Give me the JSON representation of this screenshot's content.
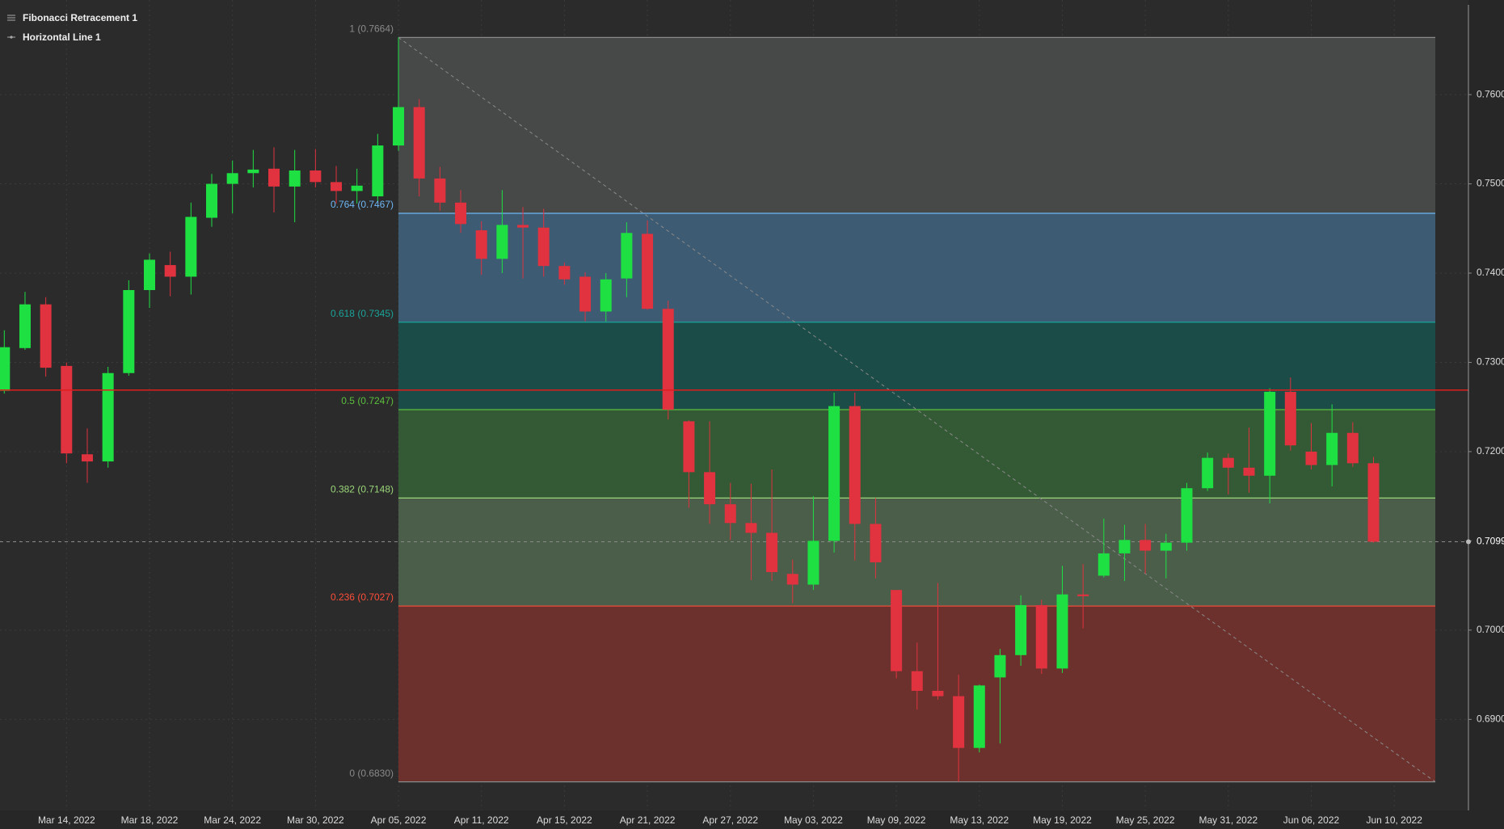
{
  "chart_data": {
    "type": "candlestick",
    "categories": [
      null,
      null,
      null,
      "Mar 14, 2022",
      null,
      null,
      null,
      "Mar 18, 2022",
      null,
      null,
      null,
      "Mar 24, 2022",
      null,
      null,
      null,
      "Mar 30, 2022",
      null,
      null,
      null,
      "Apr 05, 2022",
      null,
      null,
      null,
      "Apr 11, 2022",
      null,
      null,
      null,
      "Apr 15, 2022",
      null,
      null,
      null,
      "Apr 21, 2022",
      null,
      null,
      null,
      "Apr 27, 2022",
      null,
      null,
      null,
      "May 03, 2022",
      null,
      null,
      null,
      "May 09, 2022",
      null,
      null,
      null,
      "May 13, 2022",
      null,
      null,
      null,
      "May 19, 2022",
      null,
      null,
      null,
      "May 25, 2022",
      null,
      null,
      null,
      "May 31, 2022",
      null,
      null,
      null,
      "Jun 06, 2022",
      null,
      null,
      null,
      "Jun 10, 2022"
    ],
    "open": [
      0.7268,
      0.7316,
      0.7365,
      0.7296,
      0.7197,
      0.7189,
      0.7288,
      0.7381,
      0.7409,
      0.7396,
      0.7462,
      0.75,
      0.7512,
      0.7517,
      0.7497,
      0.7515,
      0.7502,
      0.7492,
      0.7486,
      0.7543,
      0.7586,
      0.7506,
      0.7479,
      0.7448,
      0.7416,
      0.7454,
      0.7451,
      0.7408,
      0.7396,
      0.7357,
      0.7394,
      0.7444,
      0.736,
      0.7234,
      0.7177,
      0.7141,
      0.712,
      0.7109,
      0.7063,
      0.7051,
      0.71,
      0.7251,
      0.7119,
      0.7045,
      0.6954,
      0.6932,
      0.6926,
      0.6868,
      0.6947,
      0.6972,
      0.7028,
      0.6957,
      0.704,
      0.7061,
      0.7086,
      0.7101,
      0.7089,
      0.7098,
      0.7159,
      0.7193,
      0.7182,
      0.7173,
      0.7267,
      0.72,
      0.7185,
      0.7221,
      0.7187,
      null
    ],
    "high": [
      0.7336,
      0.7379,
      0.7373,
      0.73,
      0.7226,
      0.7295,
      0.7392,
      0.7422,
      0.7424,
      0.7479,
      0.7511,
      0.7526,
      0.7538,
      0.7541,
      0.7538,
      0.7539,
      0.752,
      0.7517,
      0.7556,
      0.7664,
      0.7595,
      0.7519,
      0.7493,
      0.7458,
      0.7493,
      0.7474,
      0.7472,
      0.7412,
      0.7401,
      0.74,
      0.7457,
      0.7459,
      0.7369,
      0.7235,
      0.7234,
      0.7165,
      0.7164,
      0.718,
      0.7079,
      0.715,
      0.7266,
      0.7266,
      0.7148,
      0.7045,
      0.6986,
      0.7053,
      0.695,
      0.6939,
      0.6979,
      0.7039,
      0.7034,
      0.7072,
      0.7074,
      0.7125,
      0.7118,
      0.7119,
      0.7108,
      0.7165,
      0.7199,
      0.7198,
      0.7227,
      0.7271,
      0.7283,
      0.7232,
      0.7253,
      0.7233,
      0.7194,
      null
    ],
    "low": [
      0.7265,
      0.7314,
      0.7284,
      0.7187,
      0.7165,
      0.7182,
      0.7285,
      0.7361,
      0.7374,
      0.7376,
      0.7452,
      0.7467,
      0.7496,
      0.7468,
      0.7457,
      0.7496,
      0.7478,
      0.7478,
      0.7481,
      0.7537,
      0.7486,
      0.747,
      0.7445,
      0.7398,
      0.74,
      0.7394,
      0.7396,
      0.7387,
      0.7346,
      0.7346,
      0.7373,
      0.7359,
      0.7236,
      0.7137,
      0.7119,
      0.7101,
      0.7056,
      0.7055,
      0.703,
      0.7045,
      0.7087,
      0.7078,
      0.7058,
      0.6946,
      0.6911,
      0.6922,
      0.683,
      0.6863,
      0.6873,
      0.696,
      0.6951,
      0.6952,
      0.7002,
      0.7059,
      0.7055,
      0.7063,
      0.7058,
      0.7089,
      0.7156,
      0.7152,
      0.7154,
      0.7142,
      0.7201,
      0.718,
      0.7161,
      0.7183,
      0.7098,
      null
    ],
    "close": [
      0.7317,
      0.7365,
      0.7294,
      0.7198,
      0.7189,
      0.7288,
      0.7381,
      0.7415,
      0.7396,
      0.7463,
      0.75,
      0.7512,
      0.7516,
      0.7497,
      0.7515,
      0.7502,
      0.7492,
      0.7498,
      0.7543,
      0.7586,
      0.7506,
      0.7479,
      0.7455,
      0.7416,
      0.7454,
      0.7451,
      0.7408,
      0.7393,
      0.7357,
      0.7393,
      0.7445,
      0.736,
      0.7247,
      0.7177,
      0.7141,
      0.712,
      0.7109,
      0.7065,
      0.7051,
      0.71,
      0.7251,
      0.7119,
      0.7076,
      0.6954,
      0.6932,
      0.6926,
      0.6868,
      0.6938,
      0.6972,
      0.7028,
      0.6957,
      0.704,
      0.7038,
      0.7086,
      0.7101,
      0.7089,
      0.7098,
      0.7159,
      0.7193,
      0.7182,
      0.7173,
      0.7267,
      0.7207,
      0.7185,
      0.7221,
      0.7187,
      0.7099,
      null
    ],
    "up_color": "#1ee043",
    "down_color": "#e0323f",
    "ylim": [
      0.6798,
      0.7706
    ],
    "yticks": [
      {
        "value": 0.69,
        "label": "0.6900"
      },
      {
        "value": 0.7,
        "label": "0.7000"
      },
      {
        "value": 0.71,
        "label": "0.7100"
      },
      {
        "value": 0.72,
        "label": "0.7200"
      },
      {
        "value": 0.73,
        "label": "0.7300"
      },
      {
        "value": 0.74,
        "label": "0.7400"
      },
      {
        "value": 0.75,
        "label": "0.7500"
      },
      {
        "value": 0.76,
        "label": "0.7600"
      }
    ],
    "grid": true,
    "price_line": {
      "value": 0.7099,
      "label": "0.7099"
    },
    "fibonacci": {
      "name": "Fibonacci Retracement 1",
      "levels": [
        {
          "value": 0.7664,
          "label": "1 (0.7664)",
          "color": "#8a8a8a",
          "fill": "#474848"
        },
        {
          "value": 0.7467,
          "label": "0.764 (0.7467)",
          "color": "#6fb6f5",
          "fill": "#3d5b73"
        },
        {
          "value": 0.7345,
          "label": "0.618 (0.7345)",
          "color": "#1aa39a",
          "fill": "#1b4c48"
        },
        {
          "value": 0.7247,
          "label": "0.5 (0.7247)",
          "color": "#5cbf3c",
          "fill": "#345a35"
        },
        {
          "value": 0.7148,
          "label": "0.382 (0.7148)",
          "color": "#9bd67a",
          "fill": "#4a5e4a"
        },
        {
          "value": 0.7027,
          "label": "0.236 (0.7027)",
          "color": "#ff4d3a",
          "fill": "#6d312d"
        },
        {
          "value": 0.683,
          "label": "0 (0.6830)",
          "color": "#8a8a8a"
        }
      ]
    },
    "horizontal_line": {
      "name": "Horizontal Line 1",
      "value": 0.7269,
      "color": "#e01c1c"
    }
  }
}
